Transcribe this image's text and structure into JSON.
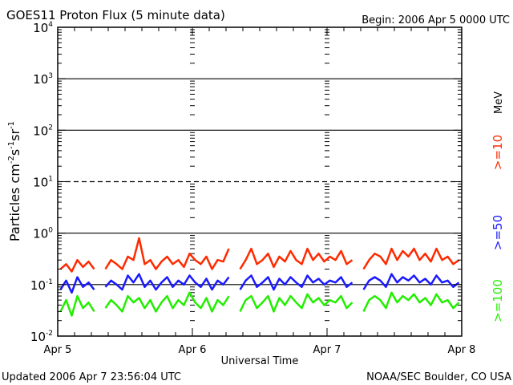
{
  "chart_data": {
    "type": "line",
    "title": "GOES11 Proton Flux (5 minute data)",
    "begin_label": "Begin: 2006 Apr 5 0000 UTC",
    "xlabel": "Universal Time",
    "ylabel": {
      "base": "Particles cm",
      "parts": [
        [
          "-2",
          "s"
        ],
        [
          "-1",
          "sr"
        ],
        [
          "-1",
          ""
        ]
      ]
    },
    "x_ticks": [
      "Apr 5",
      "Apr 6",
      "Apr 7",
      "Apr 8"
    ],
    "x_range_hours": [
      0,
      72
    ],
    "y_scale": "log",
    "ylim": [
      0.01,
      10000
    ],
    "y_ticks": [
      {
        "base": "10",
        "exp": "4"
      },
      {
        "base": "10",
        "exp": "3"
      },
      {
        "base": "10",
        "exp": "2"
      },
      {
        "base": "10",
        "exp": "1"
      },
      {
        "base": "10",
        "exp": "0"
      },
      {
        "base": "10",
        "exp": "-1"
      },
      {
        "base": "10",
        "exp": "-2"
      }
    ],
    "thresholds": [
      {
        "value": 1000,
        "style": "solid"
      },
      {
        "value": 100,
        "style": "solid"
      },
      {
        "value": 10,
        "style": "dashed"
      },
      {
        "value": 1,
        "style": "solid"
      },
      {
        "value": 0.1,
        "style": "solid"
      }
    ],
    "unit_label": "MeV",
    "series": [
      {
        "name": ">=10",
        "color": "#ff2a00",
        "values": [
          0.2,
          0.25,
          0.18,
          0.3,
          0.22,
          0.28,
          0.2,
          null,
          0.2,
          0.3,
          0.25,
          0.2,
          0.35,
          0.3,
          0.8,
          0.25,
          0.3,
          0.2,
          0.28,
          0.35,
          0.25,
          0.3,
          0.22,
          0.4,
          0.3,
          0.25,
          0.35,
          0.2,
          0.3,
          0.28,
          0.5,
          null,
          0.2,
          0.3,
          0.5,
          0.25,
          0.3,
          0.4,
          0.22,
          0.35,
          0.28,
          0.45,
          0.3,
          0.25,
          0.5,
          0.3,
          0.4,
          0.28,
          0.35,
          0.3,
          0.45,
          0.25,
          0.3,
          null,
          0.2,
          0.3,
          0.4,
          0.35,
          0.25,
          0.5,
          0.3,
          0.45,
          0.35,
          0.5,
          0.3,
          0.4,
          0.28,
          0.5,
          0.3,
          0.35,
          0.25,
          0.3
        ]
      },
      {
        "name": ">=50",
        "color": "#1a1aff",
        "values": [
          0.08,
          0.12,
          0.07,
          0.14,
          0.09,
          0.11,
          0.08,
          null,
          0.09,
          0.12,
          0.1,
          0.08,
          0.15,
          0.11,
          0.16,
          0.09,
          0.12,
          0.08,
          0.11,
          0.14,
          0.09,
          0.12,
          0.1,
          0.15,
          0.11,
          0.09,
          0.13,
          0.08,
          0.12,
          0.1,
          0.14,
          null,
          0.08,
          0.12,
          0.15,
          0.09,
          0.11,
          0.14,
          0.08,
          0.13,
          0.1,
          0.14,
          0.11,
          0.09,
          0.15,
          0.11,
          0.13,
          0.1,
          0.12,
          0.11,
          0.14,
          0.09,
          0.11,
          null,
          0.08,
          0.12,
          0.14,
          0.12,
          0.09,
          0.16,
          0.11,
          0.14,
          0.12,
          0.15,
          0.11,
          0.13,
          0.1,
          0.15,
          0.11,
          0.12,
          0.09,
          0.11
        ]
      },
      {
        "name": ">=100",
        "color": "#22ee00",
        "values": [
          0.03,
          0.05,
          0.025,
          0.06,
          0.035,
          0.045,
          0.03,
          null,
          0.035,
          0.05,
          0.04,
          0.03,
          0.06,
          0.045,
          0.055,
          0.035,
          0.05,
          0.03,
          0.045,
          0.06,
          0.035,
          0.05,
          0.04,
          0.07,
          0.045,
          0.035,
          0.055,
          0.03,
          0.05,
          0.04,
          0.06,
          null,
          0.03,
          0.05,
          0.06,
          0.035,
          0.045,
          0.06,
          0.03,
          0.055,
          0.04,
          0.06,
          0.045,
          0.035,
          0.065,
          0.045,
          0.055,
          0.04,
          0.05,
          0.045,
          0.06,
          0.035,
          0.045,
          null,
          0.03,
          0.05,
          0.06,
          0.05,
          0.035,
          0.07,
          0.045,
          0.06,
          0.05,
          0.065,
          0.045,
          0.055,
          0.04,
          0.065,
          0.045,
          0.05,
          0.035,
          0.045
        ]
      }
    ]
  },
  "footer": {
    "updated": "Updated 2006 Apr  7 23:56:04 UTC",
    "credit": "NOAA/SEC Boulder, CO USA"
  }
}
